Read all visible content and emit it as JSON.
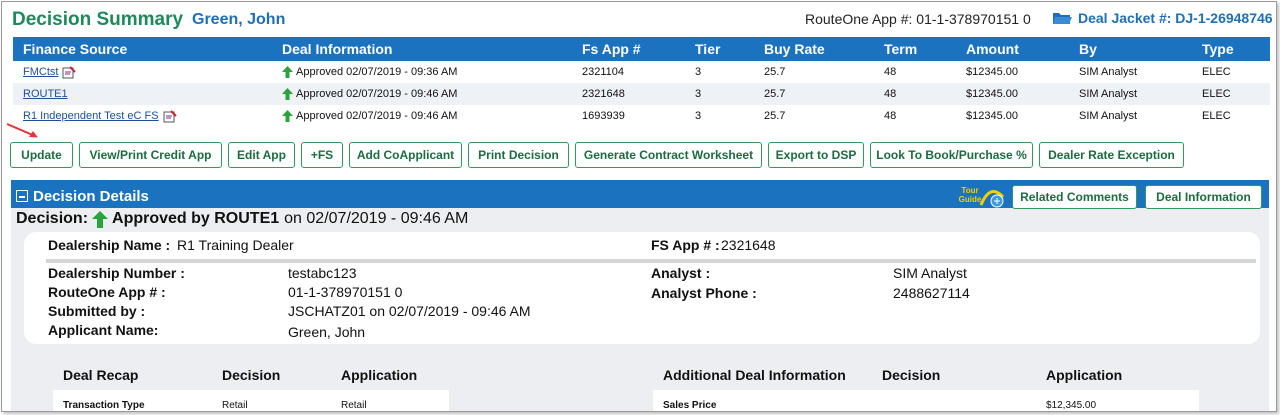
{
  "header": {
    "title": "Decision Summary",
    "customer": "Green, John",
    "routeone_app": "RouteOne App #: 01-1-378970151 0",
    "deal_jacket": "Deal Jacket #: DJ-1-26948746"
  },
  "finance_table": {
    "columns": [
      "Finance Source",
      "Deal Information",
      "Fs App #",
      "Tier",
      "Buy Rate",
      "Term",
      "Amount",
      "By",
      "Type"
    ],
    "rows": [
      {
        "source": "FMCtst",
        "deal_info": "Approved 02/07/2019 - 09:36 AM",
        "fs_app": "2321104",
        "tier": "3",
        "buy_rate": "25.7",
        "term": "48",
        "amount": "$12345.00",
        "by": "SIM Analyst",
        "type": "ELEC"
      },
      {
        "source": "ROUTE1",
        "deal_info": "Approved 02/07/2019 - 09:46 AM",
        "fs_app": "2321648",
        "tier": "3",
        "buy_rate": "25.7",
        "term": "48",
        "amount": "$12345.00",
        "by": "SIM Analyst",
        "type": "ELEC"
      },
      {
        "source": "R1 Independent Test eC FS",
        "deal_info": "Approved 02/07/2019 - 09:46 AM",
        "fs_app": "1693939",
        "tier": "3",
        "buy_rate": "25.7",
        "term": "48",
        "amount": "$12345.00",
        "by": "SIM Analyst",
        "type": "ELEC"
      }
    ]
  },
  "actions": [
    "Update",
    "View/Print Credit App",
    "Edit App",
    "+FS",
    "Add CoApplicant",
    "Print Decision",
    "Generate Contract Worksheet",
    "Export to DSP",
    "Look To Book/Purchase %",
    "Dealer Rate Exception"
  ],
  "decision_details": {
    "title": "Decision Details",
    "tour_guide": "Tour Guide",
    "related_comments": "Related Comments",
    "deal_information": "Deal Information",
    "decision_prefix": "Decision:",
    "decision_status": "Approved by ROUTE1",
    "decision_date": "on 02/07/2019 - 09:46 AM"
  },
  "summary": {
    "dealership_name_label": "Dealership Name :",
    "dealership_name": "R1 Training Dealer",
    "fs_app_label": "FS App # :",
    "fs_app": "2321648",
    "dealership_number_label": "Dealership Number :",
    "dealership_number": "testabc123",
    "routeone_app_label": "RouteOne App # :",
    "routeone_app": "01-1-378970151 0",
    "submitted_by_label": "Submitted by :",
    "submitted_by": "JSCHATZ01 on 02/07/2019 - 09:46 AM",
    "applicant_name_label": "Applicant Name:",
    "applicant_name": "Green, John",
    "analyst_label": "Analyst :",
    "analyst": "SIM Analyst",
    "analyst_phone_label": "Analyst Phone :",
    "analyst_phone": "2488627114"
  },
  "deal_recap": {
    "headers": [
      "Deal Recap",
      "Decision",
      "Application"
    ],
    "row": [
      "Transaction Type",
      "Retail",
      "Retail"
    ]
  },
  "additional_info": {
    "headers": [
      "Additional Deal Information",
      "Decision",
      "Application"
    ],
    "row": [
      "Sales Price",
      "",
      "$12,345.00"
    ]
  },
  "colors": {
    "brand_green": "#1e8a59",
    "brand_blue": "#1b73bf",
    "link": "#1f4f9a",
    "button_border": "#2f9a5d"
  }
}
